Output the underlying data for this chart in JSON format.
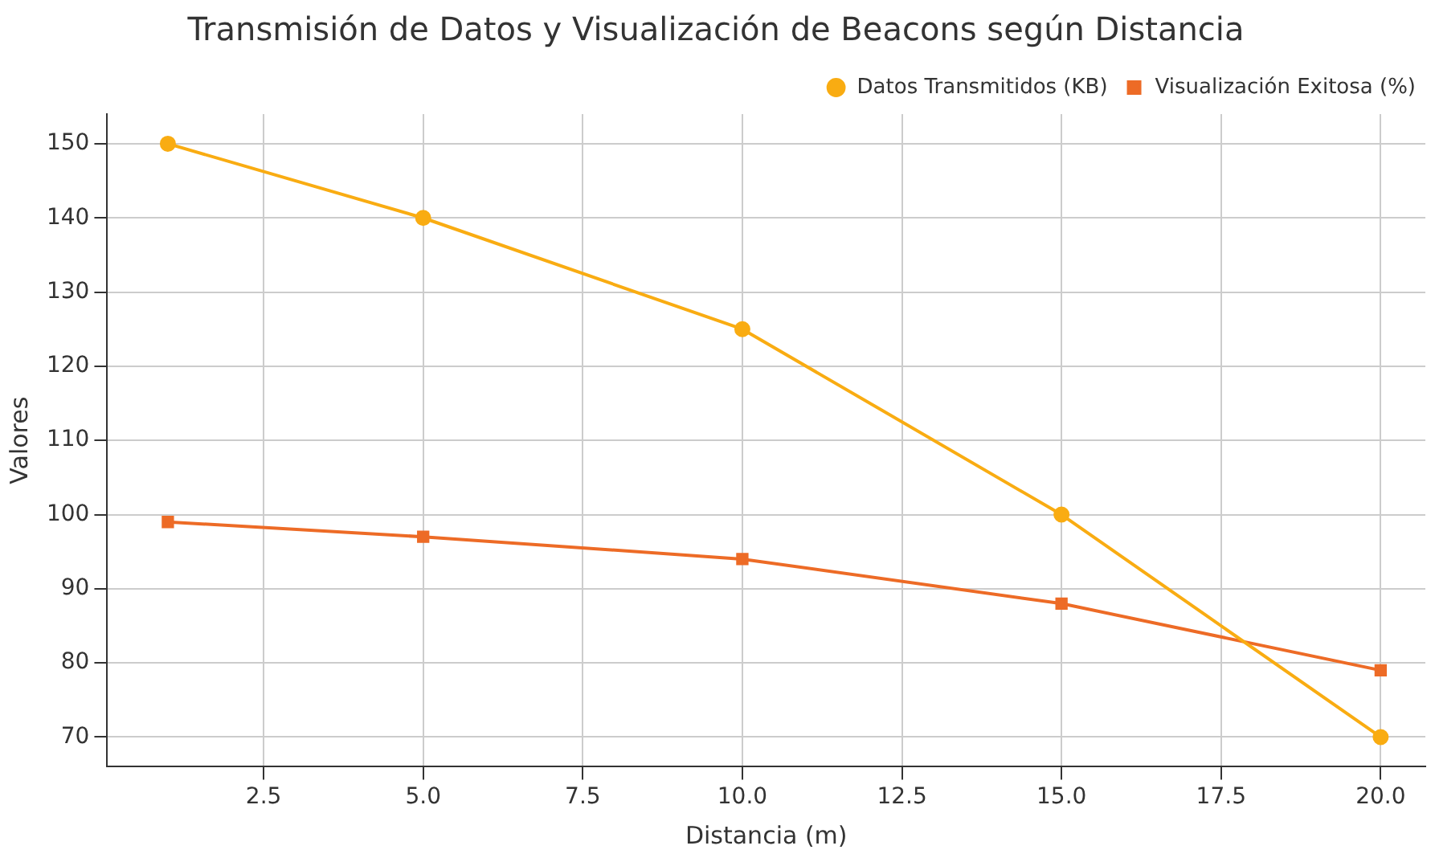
{
  "chart_data": {
    "type": "line",
    "title": "Transmisión de Datos y Visualización de Beacons según Distancia",
    "xlabel": "Distancia (m)",
    "ylabel": "Valores",
    "x": [
      1,
      5,
      10,
      15,
      20
    ],
    "series": [
      {
        "name": "Datos Transmitidos (KB)",
        "color": "#f9ac12",
        "marker": "circle",
        "values": [
          150,
          140,
          125,
          100,
          70
        ]
      },
      {
        "name": "Visualización Exitosa (%)",
        "color": "#ed6b26",
        "marker": "square",
        "values": [
          99,
          97,
          94,
          88,
          79
        ]
      }
    ],
    "xlim": [
      0.05,
      20.7
    ],
    "xticks": [
      2.5,
      {
        "value": 5,
        "label": "5.0"
      },
      7.5,
      {
        "value": 10,
        "label": "10.0"
      },
      {
        "value": 12.5,
        "label": "12.5"
      },
      {
        "value": 15,
        "label": "15.0"
      },
      {
        "value": 17.5,
        "label": "17.5"
      },
      {
        "value": 20,
        "label": "20.0"
      }
    ],
    "ylim": [
      66,
      154
    ],
    "yticks": [
      70,
      80,
      90,
      100,
      110,
      120,
      130,
      140,
      150
    ],
    "grid": true,
    "legend": "top right",
    "line_style": "solid"
  }
}
